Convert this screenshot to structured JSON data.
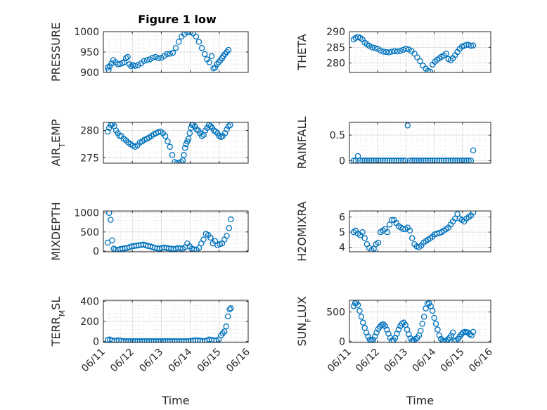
{
  "figure": {
    "title": "Figure 1 low",
    "marker_color": "#0072BD",
    "grid_color": "#d8d8d8",
    "axis_color": "#262626"
  },
  "chart_data": [
    {
      "type": "scatter",
      "name": "pressure",
      "ylabel": "PRESSURE",
      "xlabel": "",
      "title": "Figure 1 low",
      "ylim": [
        900,
        1000
      ],
      "yticks": [
        900,
        950,
        1000
      ],
      "xlim": [
        0,
        5
      ],
      "xticks": [
        0,
        1,
        2,
        3,
        4,
        5
      ],
      "xticklabels": [
        "06/11",
        "06/12",
        "06/13",
        "06/14",
        "06/15",
        "06/16"
      ],
      "show_xticklabels": false,
      "grid": true,
      "x": [
        0.15,
        0.18,
        0.22,
        0.28,
        0.34,
        0.42,
        0.5,
        0.58,
        0.66,
        0.72,
        0.78,
        0.84,
        0.9,
        0.96,
        1.02,
        1.1,
        1.2,
        1.3,
        1.4,
        1.5,
        1.6,
        1.7,
        1.8,
        1.9,
        2.0,
        2.1,
        2.2,
        2.3,
        2.4,
        2.5,
        2.6,
        2.7,
        2.8,
        2.9,
        3.0,
        3.1,
        3.2,
        3.3,
        3.4,
        3.5,
        3.58,
        3.66,
        3.74,
        3.8,
        3.86,
        3.92,
        3.98,
        4.04,
        4.1,
        4.14,
        4.2,
        4.26,
        4.32
      ],
      "y": [
        912,
        906,
        915,
        922,
        930,
        925,
        920,
        921,
        923,
        925,
        935,
        938,
        920,
        915,
        918,
        916,
        918,
        922,
        928,
        930,
        932,
        936,
        938,
        935,
        936,
        940,
        945,
        946,
        948,
        960,
        975,
        988,
        994,
        998,
        999,
        996,
        988,
        975,
        960,
        945,
        932,
        925,
        940,
        910,
        912,
        920,
        925,
        930,
        935,
        940,
        945,
        950,
        955
      ]
    },
    {
      "type": "scatter",
      "name": "theta",
      "ylabel": "THETA",
      "xlabel": "",
      "ylim": [
        277,
        290
      ],
      "yticks": [
        280,
        285,
        290
      ],
      "xlim": [
        0,
        5
      ],
      "xticks": [
        0,
        1,
        2,
        3,
        4,
        5
      ],
      "xticklabels": [
        "06/11",
        "06/12",
        "06/13",
        "06/14",
        "06/15",
        "06/16"
      ],
      "show_xticklabels": false,
      "grid": true,
      "x": [
        0.15,
        0.22,
        0.3,
        0.38,
        0.46,
        0.54,
        0.62,
        0.7,
        0.8,
        0.9,
        1.0,
        1.1,
        1.2,
        1.3,
        1.4,
        1.5,
        1.6,
        1.7,
        1.8,
        1.9,
        2.0,
        2.1,
        2.2,
        2.3,
        2.4,
        2.5,
        2.6,
        2.7,
        2.78,
        2.86,
        2.94,
        3.02,
        3.1,
        3.18,
        3.26,
        3.34,
        3.42,
        3.5,
        3.58,
        3.66,
        3.74,
        3.82,
        3.9,
        3.98,
        4.06,
        4.14,
        4.22,
        4.3,
        4.38
      ],
      "y": [
        287.5,
        288,
        288.3,
        288,
        287.5,
        286.5,
        286,
        285.5,
        285,
        284.8,
        284.5,
        284,
        283.6,
        283.5,
        283.4,
        283.6,
        283.8,
        283.7,
        283.9,
        284.2,
        284.5,
        284.3,
        283.8,
        283,
        281.8,
        280.6,
        279.2,
        278.2,
        277.5,
        277.2,
        279.5,
        280.4,
        281,
        281.5,
        282,
        282.4,
        283,
        281.3,
        280.9,
        281.5,
        282.5,
        283.5,
        284.5,
        285.2,
        285.5,
        285.8,
        285.8,
        285.5,
        285.6
      ]
    },
    {
      "type": "scatter",
      "name": "air_temp",
      "ylabel": "AIR",
      "ylabel_sub": "T",
      "ylabel_suffix": "EMP",
      "xlabel": "",
      "ylim": [
        274,
        281.5
      ],
      "yticks": [
        275,
        280
      ],
      "xlim": [
        0,
        5
      ],
      "xticks": [
        0,
        1,
        2,
        3,
        4,
        5
      ],
      "xticklabels": [
        "06/11",
        "06/12",
        "06/13",
        "06/14",
        "06/15",
        "06/16"
      ],
      "show_xticklabels": false,
      "grid": true,
      "x": [
        0.15,
        0.2,
        0.26,
        0.32,
        0.38,
        0.44,
        0.5,
        0.56,
        0.62,
        0.7,
        0.78,
        0.86,
        0.94,
        1.02,
        1.1,
        1.18,
        1.26,
        1.34,
        1.42,
        1.5,
        1.58,
        1.66,
        1.74,
        1.82,
        1.9,
        1.98,
        2.06,
        2.14,
        2.22,
        2.3,
        2.38,
        2.46,
        2.54,
        2.62,
        2.68,
        2.74,
        2.78,
        2.82,
        2.86,
        2.9,
        2.94,
        2.98,
        3.02,
        3.06,
        3.1,
        3.16,
        3.22,
        3.28,
        3.34,
        3.4,
        3.46,
        3.52,
        3.58,
        3.64,
        3.7,
        3.76,
        3.82,
        3.88,
        3.94,
        4.0,
        4.06,
        4.12,
        4.2,
        4.26,
        4.32,
        4.38
      ],
      "y": [
        279.8,
        280.5,
        281,
        281.2,
        280.8,
        280,
        279.5,
        279,
        279,
        278.5,
        278.2,
        277.8,
        277.5,
        277.2,
        277,
        277.3,
        277.8,
        278,
        278.3,
        278.5,
        278.7,
        279,
        279.3,
        279.5,
        279.7,
        279.8,
        279.5,
        279,
        278,
        277,
        275.5,
        274.2,
        274,
        274,
        274.2,
        274.5,
        275.5,
        276.8,
        277.5,
        278,
        278.5,
        279.5,
        280.5,
        281,
        281.2,
        280.8,
        280.2,
        280,
        279.5,
        279,
        279.2,
        280,
        280.5,
        281,
        280.8,
        280.5,
        280,
        279.8,
        279.5,
        279,
        278.8,
        279,
        279.5,
        280.2,
        280.8,
        281
      ]
    },
    {
      "type": "scatter",
      "name": "rainfall",
      "ylabel": "RAINFALL",
      "xlabel": "",
      "ylim": [
        -0.05,
        0.75
      ],
      "yticks": [
        0,
        0.5
      ],
      "xlim": [
        0,
        5
      ],
      "xticks": [
        0,
        1,
        2,
        3,
        4,
        5
      ],
      "xticklabels": [
        "06/11",
        "06/12",
        "06/13",
        "06/14",
        "06/15",
        "06/16"
      ],
      "show_xticklabels": false,
      "grid": true,
      "x": [
        0.15,
        0.22,
        0.3,
        0.38,
        0.46,
        0.54,
        0.62,
        0.7,
        0.78,
        0.86,
        0.94,
        1.02,
        1.1,
        1.18,
        1.26,
        1.34,
        1.42,
        1.5,
        1.58,
        1.66,
        1.74,
        1.82,
        1.9,
        1.98,
        2.06,
        2.14,
        2.22,
        2.3,
        2.38,
        2.46,
        2.54,
        2.62,
        2.7,
        2.78,
        2.86,
        2.94,
        3.02,
        3.1,
        3.18,
        3.26,
        3.34,
        3.42,
        3.5,
        3.58,
        3.66,
        3.74,
        3.82,
        3.9,
        3.98,
        4.06,
        4.14,
        4.22,
        4.3,
        4.38
      ],
      "y": [
        0,
        0,
        0.09,
        0,
        0,
        0,
        0,
        0,
        0,
        0,
        0,
        0,
        0,
        0,
        0,
        0,
        0,
        0,
        0,
        0,
        0,
        0,
        0,
        0,
        0.69,
        0,
        0,
        0,
        0,
        0,
        0,
        0,
        0,
        0,
        0,
        0,
        0,
        0,
        0,
        0,
        0,
        0,
        0,
        0,
        0,
        0,
        0,
        0,
        0,
        0,
        0,
        0,
        0,
        0.2
      ]
    },
    {
      "type": "scatter",
      "name": "mixdepth",
      "ylabel": "MIXDEPTH",
      "xlabel": "",
      "ylim": [
        -20,
        1050
      ],
      "yticks": [
        0,
        500,
        1000
      ],
      "xlim": [
        0,
        5
      ],
      "xticks": [
        0,
        1,
        2,
        3,
        4,
        5
      ],
      "xticklabels": [
        "06/11",
        "06/12",
        "06/13",
        "06/14",
        "06/15",
        "06/16"
      ],
      "show_xticklabels": false,
      "grid": true,
      "x": [
        0.15,
        0.2,
        0.25,
        0.3,
        0.36,
        0.42,
        0.5,
        0.58,
        0.66,
        0.74,
        0.82,
        0.9,
        0.98,
        1.06,
        1.14,
        1.22,
        1.3,
        1.38,
        1.46,
        1.54,
        1.62,
        1.7,
        1.78,
        1.86,
        1.94,
        2.02,
        2.1,
        2.18,
        2.26,
        2.34,
        2.42,
        2.5,
        2.58,
        2.66,
        2.74,
        2.82,
        2.9,
        2.98,
        3.06,
        3.14,
        3.22,
        3.3,
        3.38,
        3.46,
        3.54,
        3.62,
        3.7,
        3.78,
        3.86,
        3.94,
        4.02,
        4.1,
        4.18,
        4.26,
        4.34,
        4.4
      ],
      "y": [
        220,
        1000,
        820,
        280,
        60,
        40,
        30,
        50,
        60,
        70,
        80,
        100,
        120,
        130,
        140,
        150,
        160,
        170,
        150,
        130,
        120,
        100,
        80,
        70,
        60,
        80,
        90,
        80,
        70,
        60,
        50,
        60,
        80,
        70,
        60,
        100,
        200,
        120,
        60,
        40,
        30,
        80,
        200,
        300,
        450,
        420,
        350,
        200,
        260,
        150,
        180,
        200,
        300,
        400,
        600,
        830
      ]
    },
    {
      "type": "scatter",
      "name": "h2omixra",
      "ylabel": "H2OMIXRA",
      "xlabel": "",
      "ylim": [
        3.7,
        6.4
      ],
      "yticks": [
        4,
        5,
        6
      ],
      "xlim": [
        0,
        5
      ],
      "xticks": [
        0,
        1,
        2,
        3,
        4,
        5
      ],
      "xticklabels": [
        "06/11",
        "06/12",
        "06/13",
        "06/14",
        "06/15",
        "06/16"
      ],
      "show_xticklabels": false,
      "grid": true,
      "x": [
        0.15,
        0.22,
        0.3,
        0.38,
        0.46,
        0.54,
        0.62,
        0.7,
        0.78,
        0.86,
        0.94,
        1.02,
        1.1,
        1.18,
        1.26,
        1.34,
        1.42,
        1.5,
        1.58,
        1.66,
        1.74,
        1.82,
        1.9,
        1.98,
        2.06,
        2.14,
        2.22,
        2.3,
        2.38,
        2.46,
        2.54,
        2.62,
        2.7,
        2.78,
        2.86,
        2.94,
        3.02,
        3.1,
        3.18,
        3.26,
        3.34,
        3.42,
        3.5,
        3.58,
        3.66,
        3.74,
        3.82,
        3.9,
        3.98,
        4.06,
        4.14,
        4.22,
        4.3,
        4.38
      ],
      "y": [
        5.0,
        5.1,
        4.9,
        4.8,
        5.0,
        4.6,
        4.2,
        3.95,
        3.8,
        3.9,
        4.2,
        4.3,
        5.0,
        5.1,
        5.2,
        5.0,
        5.5,
        5.8,
        5.8,
        5.6,
        5.4,
        5.3,
        5.2,
        5.2,
        5.3,
        5.1,
        4.6,
        4.2,
        4.05,
        4.0,
        4.1,
        4.3,
        4.4,
        4.5,
        4.6,
        4.7,
        4.85,
        4.9,
        4.95,
        5.0,
        5.1,
        5.2,
        5.3,
        5.5,
        5.7,
        5.9,
        6.2,
        5.9,
        5.8,
        5.7,
        5.9,
        6.0,
        6.1,
        6.3
      ]
    },
    {
      "type": "scatter",
      "name": "terr_msl",
      "ylabel": "TERR",
      "ylabel_sub": "M",
      "ylabel_suffix": "SL",
      "xlabel": "Time",
      "ylim": [
        -10,
        410
      ],
      "yticks": [
        0,
        200,
        400
      ],
      "xlim": [
        0,
        5
      ],
      "xticks": [
        0,
        1,
        2,
        3,
        4,
        5
      ],
      "xticklabels": [
        "06/11",
        "06/12",
        "06/13",
        "06/14",
        "06/15",
        "06/16"
      ],
      "show_xticklabels": true,
      "grid": true,
      "x": [
        0.15,
        0.22,
        0.3,
        0.38,
        0.46,
        0.54,
        0.62,
        0.7,
        0.78,
        0.86,
        0.94,
        1.02,
        1.1,
        1.18,
        1.26,
        1.34,
        1.42,
        1.5,
        1.58,
        1.66,
        1.74,
        1.82,
        1.9,
        1.98,
        2.06,
        2.14,
        2.22,
        2.3,
        2.38,
        2.46,
        2.54,
        2.62,
        2.7,
        2.78,
        2.86,
        2.94,
        3.02,
        3.1,
        3.18,
        3.26,
        3.34,
        3.42,
        3.5,
        3.58,
        3.66,
        3.74,
        3.82,
        3.9,
        3.98,
        4.06,
        4.12,
        4.18,
        4.24,
        4.3,
        4.36,
        4.4
      ],
      "y": [
        15,
        20,
        10,
        5,
        8,
        12,
        5,
        3,
        2,
        2,
        2,
        2,
        2,
        2,
        2,
        2,
        2,
        2,
        2,
        2,
        2,
        2,
        2,
        2,
        2,
        2,
        2,
        2,
        2,
        2,
        2,
        2,
        2,
        2,
        2,
        2,
        5,
        8,
        12,
        10,
        8,
        5,
        3,
        10,
        20,
        15,
        10,
        8,
        20,
        60,
        80,
        100,
        150,
        250,
        320,
        330
      ]
    },
    {
      "type": "scatter",
      "name": "sun_flux",
      "ylabel": "SUN",
      "ylabel_sub": "F",
      "ylabel_suffix": "LUX",
      "xlabel": "Time",
      "ylim": [
        -20,
        700
      ],
      "yticks": [
        0,
        500
      ],
      "xlim": [
        0,
        5
      ],
      "xticks": [
        0,
        1,
        2,
        3,
        4,
        5
      ],
      "xticklabels": [
        "06/11",
        "06/12",
        "06/13",
        "06/14",
        "06/15",
        "06/16"
      ],
      "show_xticklabels": true,
      "grid": true,
      "x": [
        0.15,
        0.2,
        0.25,
        0.3,
        0.36,
        0.42,
        0.48,
        0.54,
        0.6,
        0.66,
        0.72,
        0.78,
        0.84,
        0.9,
        0.96,
        1.02,
        1.08,
        1.14,
        1.2,
        1.26,
        1.32,
        1.38,
        1.44,
        1.5,
        1.56,
        1.62,
        1.68,
        1.74,
        1.8,
        1.86,
        1.92,
        1.98,
        2.04,
        2.1,
        2.16,
        2.22,
        2.28,
        2.34,
        2.4,
        2.46,
        2.52,
        2.58,
        2.64,
        2.7,
        2.76,
        2.82,
        2.88,
        2.94,
        3.0,
        3.06,
        3.12,
        3.18,
        3.24,
        3.3,
        3.36,
        3.42,
        3.48,
        3.54,
        3.6,
        3.66,
        3.72,
        3.78,
        3.84,
        3.9,
        3.96,
        4.02,
        4.08,
        4.14,
        4.2,
        4.26,
        4.32,
        4.38
      ],
      "y": [
        600,
        650,
        660,
        620,
        520,
        420,
        320,
        230,
        150,
        80,
        30,
        10,
        30,
        80,
        150,
        210,
        250,
        280,
        290,
        260,
        200,
        130,
        60,
        10,
        20,
        60,
        130,
        200,
        260,
        300,
        320,
        280,
        200,
        120,
        50,
        10,
        20,
        40,
        60,
        100,
        180,
        300,
        420,
        560,
        640,
        650,
        600,
        520,
        400,
        300,
        200,
        100,
        40,
        10,
        5,
        10,
        30,
        60,
        100,
        150,
        10,
        20,
        40,
        80,
        120,
        150,
        160,
        155,
        150,
        120,
        100,
        160
      ]
    }
  ]
}
